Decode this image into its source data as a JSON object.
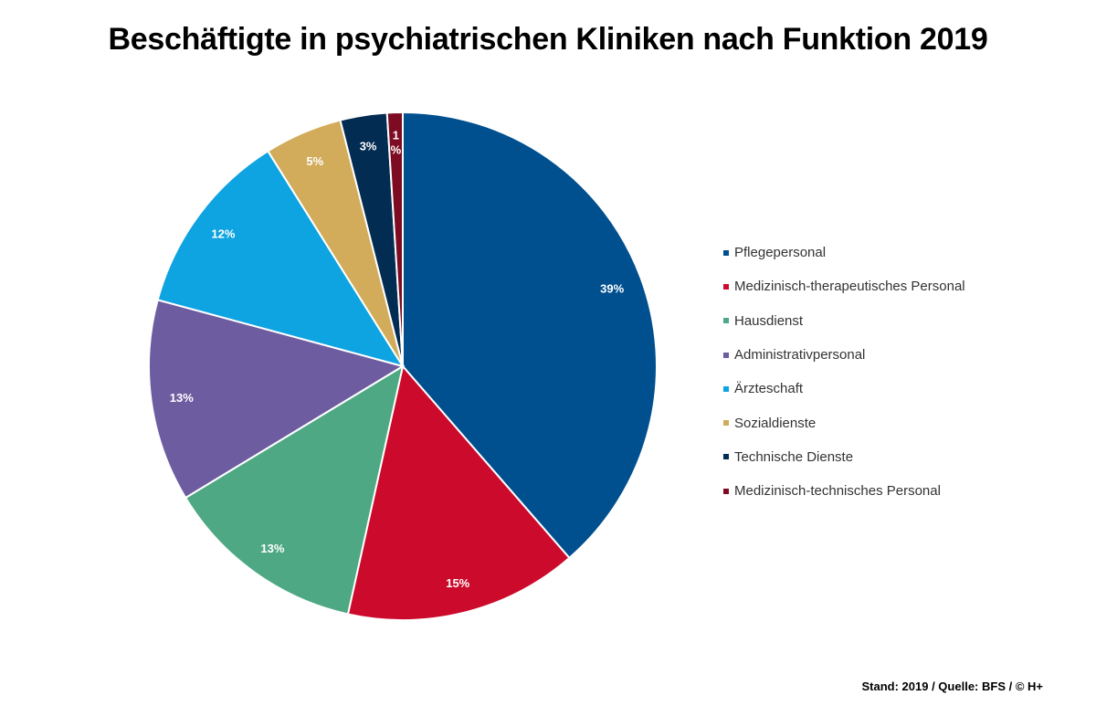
{
  "chart_data": {
    "type": "pie",
    "title": "Beschäftigte in psychiatrischen Kliniken nach Funktion 2019",
    "legend_position": "right",
    "slices": [
      {
        "name": "Pflegepersonal",
        "value": 39,
        "label": "39%",
        "color": "#00508f"
      },
      {
        "name": "Medizinisch-therapeutisches Personal",
        "value": 15,
        "label": "15%",
        "color": "#cc0a2c"
      },
      {
        "name": "Hausdienst",
        "value": 13,
        "label": "13%",
        "color": "#4ea884"
      },
      {
        "name": "Administrativpersonal",
        "value": 13,
        "label": "13%",
        "color": "#6e5ca0"
      },
      {
        "name": "Ärzteschaft",
        "value": 12,
        "label": "12%",
        "color": "#0ea3e1"
      },
      {
        "name": "Sozialdienste",
        "value": 5,
        "label": "5%",
        "color": "#d2ac5a"
      },
      {
        "name": "Technische Dienste",
        "value": 3,
        "label": "3%",
        "color": "#022c52"
      },
      {
        "name": "Medizinisch-technisches Personal",
        "value": 1,
        "label": "1%",
        "color": "#7d0c22"
      }
    ]
  },
  "source_note": "Stand: 2019 / Quelle: BFS / © H+"
}
